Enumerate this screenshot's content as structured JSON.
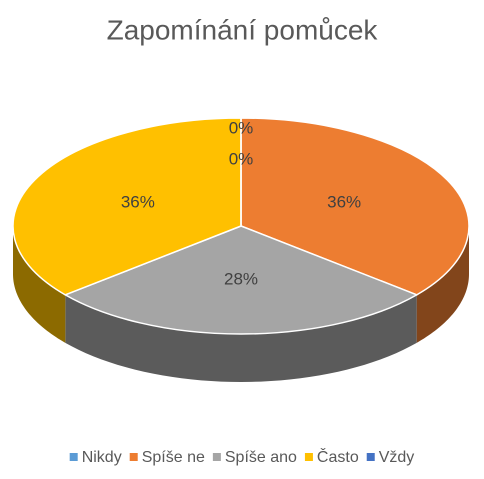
{
  "chart_data": {
    "type": "pie",
    "title": "Zapomínání pomůcek",
    "categories": [
      "Nikdy",
      "Spíše ne",
      "Spíše ano",
      "Často",
      "Vždy"
    ],
    "values": [
      0,
      36,
      28,
      36,
      0
    ],
    "value_labels": [
      "0%",
      "36%",
      "28%",
      "36%",
      "0%"
    ],
    "colors": [
      "#5b9bd5",
      "#ed7d31",
      "#a5a5a5",
      "#ffc000",
      "#4472c4"
    ],
    "legend": "bottom"
  }
}
